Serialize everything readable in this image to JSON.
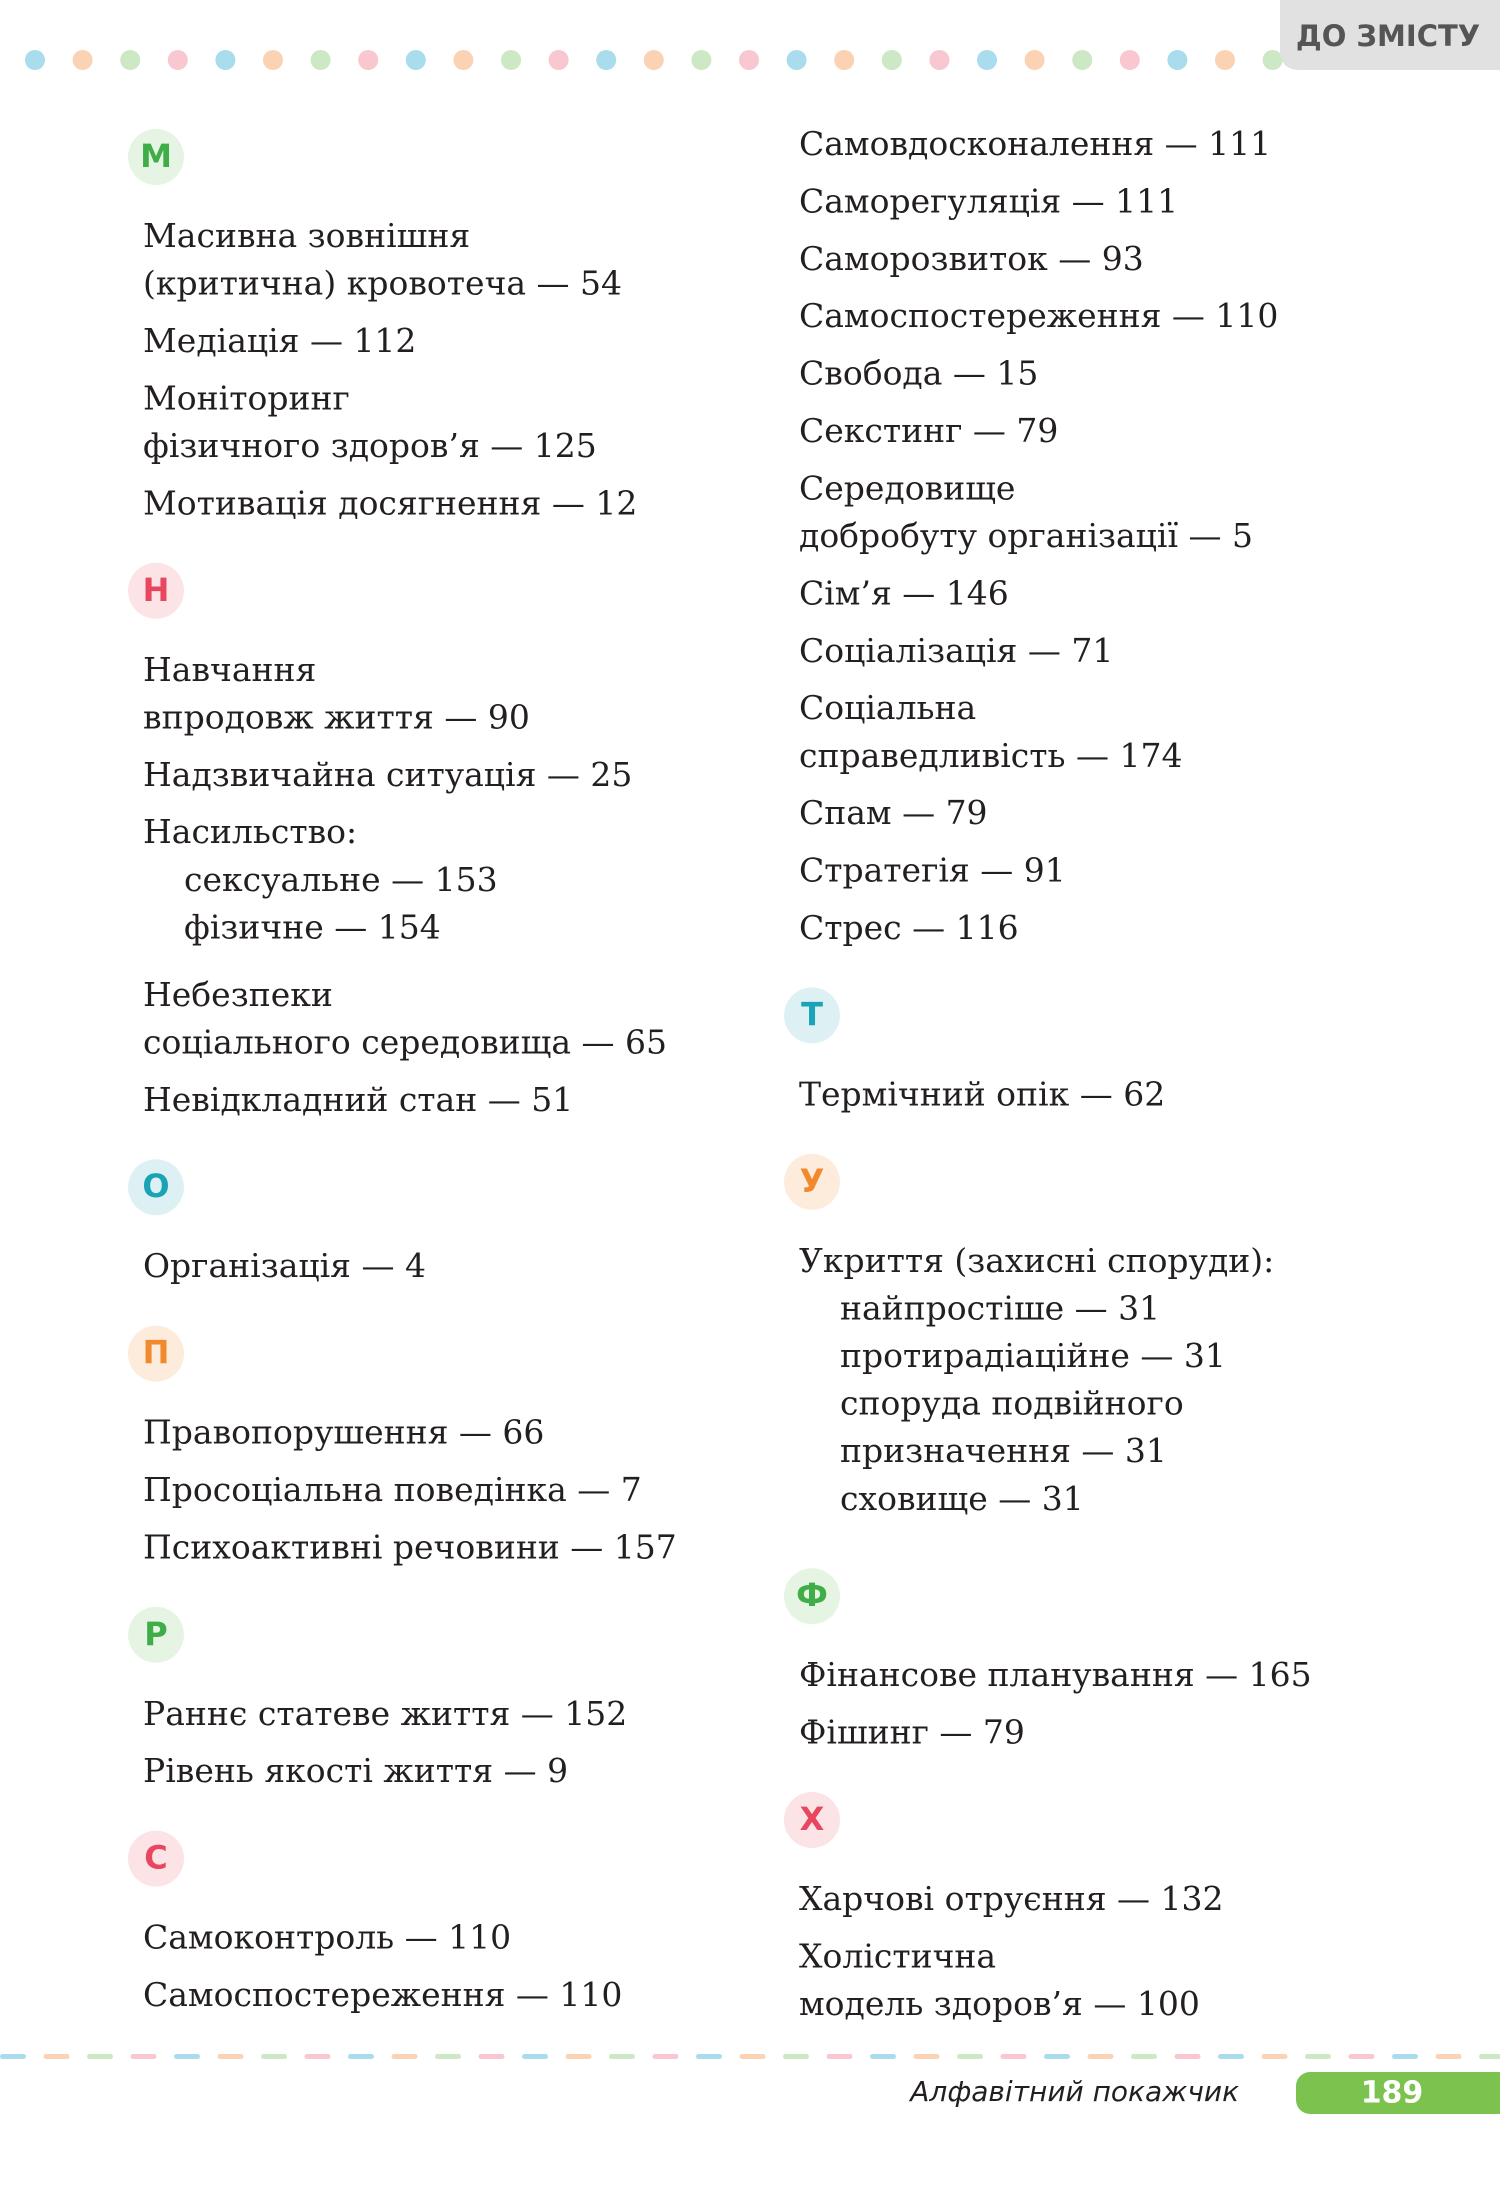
{
  "header": {
    "tab": "ДО ЗМІСТУ"
  },
  "columns": [
    {
      "sections": [
        {
          "letter": "М",
          "color": "#3fae49",
          "bg": "#e6f4e3",
          "entries": [
            {
              "lines": [
                "Масивна зовнішня",
                "(критична) кровотеча — 54"
              ]
            },
            {
              "lines": [
                "Медіація — 112"
              ]
            },
            {
              "lines": [
                "Моніторинг",
                "фізичного здоров’я — 125"
              ]
            },
            {
              "lines": [
                "Мотивація досягнення — 12"
              ]
            }
          ]
        },
        {
          "letter": "Н",
          "color": "#e8475f",
          "bg": "#fbe3e6",
          "entries": [
            {
              "lines": [
                "Навчання",
                "впродовж життя — 90"
              ]
            },
            {
              "lines": [
                "Надзвичайна ситуація — 25"
              ]
            },
            {
              "lines": [
                "Насильство:"
              ],
              "sub": [
                {
                  "lines": [
                    "сексуальне — 153"
                  ]
                },
                {
                  "lines": [
                    "фізичне — 154"
                  ]
                }
              ]
            },
            {
              "lines": [
                "Небезпеки",
                "соціального середовища — 65"
              ]
            },
            {
              "lines": [
                "Невідкладний стан — 51"
              ]
            }
          ]
        },
        {
          "letter": "О",
          "color": "#1aa3b5",
          "bg": "#ddf1f4",
          "entries": [
            {
              "lines": [
                "Організація — 4"
              ]
            }
          ]
        },
        {
          "letter": "П",
          "color": "#f08a2c",
          "bg": "#fdebdc",
          "entries": [
            {
              "lines": [
                "Правопорушення — 66"
              ]
            },
            {
              "lines": [
                "Просоціальна поведінка — 7"
              ]
            },
            {
              "lines": [
                "Психоактивні речовини — 157"
              ]
            }
          ]
        },
        {
          "letter": "Р",
          "color": "#3fae49",
          "bg": "#e6f4e3",
          "entries": [
            {
              "lines": [
                "Раннє статеве життя — 152"
              ]
            },
            {
              "lines": [
                "Рівень якості життя — 9"
              ]
            }
          ]
        },
        {
          "letter": "С",
          "color": "#e8475f",
          "bg": "#fbe3e6",
          "entries": [
            {
              "lines": [
                "Самоконтроль — 110"
              ]
            },
            {
              "lines": [
                "Самоспостереження — 110"
              ]
            }
          ]
        }
      ]
    },
    {
      "sections": [
        {
          "entries": [
            {
              "lines": [
                "Самовдосконалення — 111"
              ]
            },
            {
              "lines": [
                "Саморегуляція — 111"
              ]
            },
            {
              "lines": [
                "Саморозвиток — 93"
              ]
            },
            {
              "lines": [
                "Самоспостереження — 110"
              ]
            },
            {
              "lines": [
                "Свобода — 15"
              ]
            },
            {
              "lines": [
                "Секстинг — 79"
              ]
            },
            {
              "lines": [
                "Середовище",
                "добробуту організації — 5"
              ]
            },
            {
              "lines": [
                "Сім’я — 146"
              ]
            },
            {
              "lines": [
                "Соціалізація — 71"
              ]
            },
            {
              "lines": [
                "Соціальна",
                "справедливість — 174"
              ]
            },
            {
              "lines": [
                "Спам — 79"
              ]
            },
            {
              "lines": [
                "Стратегія — 91"
              ]
            },
            {
              "lines": [
                "Стрес — 116"
              ]
            }
          ]
        },
        {
          "letter": "Т",
          "color": "#1aa3b5",
          "bg": "#ddf1f4",
          "entries": [
            {
              "lines": [
                "Термічний опік — 62"
              ]
            }
          ]
        },
        {
          "letter": "У",
          "color": "#f08a2c",
          "bg": "#fdebdc",
          "entries": [
            {
              "lines": [
                "Укриття (захисні споруди):"
              ],
              "sub": [
                {
                  "lines": [
                    "найпростіше — 31"
                  ]
                },
                {
                  "lines": [
                    "протирадіаційне — 31"
                  ]
                },
                {
                  "lines": [
                    "споруда подвійного",
                    "призначення — 31"
                  ]
                },
                {
                  "lines": [
                    "сховище — 31"
                  ]
                }
              ]
            }
          ]
        },
        {
          "letter": "Ф",
          "color": "#3fae49",
          "bg": "#e6f4e3",
          "entries": [
            {
              "lines": [
                "Фінансове планування — 165"
              ]
            },
            {
              "lines": [
                "Фішинг — 79"
              ]
            }
          ]
        },
        {
          "letter": "Х",
          "color": "#e8475f",
          "bg": "#fbe3e6",
          "entries": [
            {
              "lines": [
                "Харчові отруєння — 132"
              ]
            },
            {
              "lines": [
                "Холістична",
                "модель здоров’я — 100"
              ]
            }
          ]
        }
      ]
    }
  ],
  "footer": {
    "title": "Алфавітний покажчик",
    "page": "189"
  }
}
